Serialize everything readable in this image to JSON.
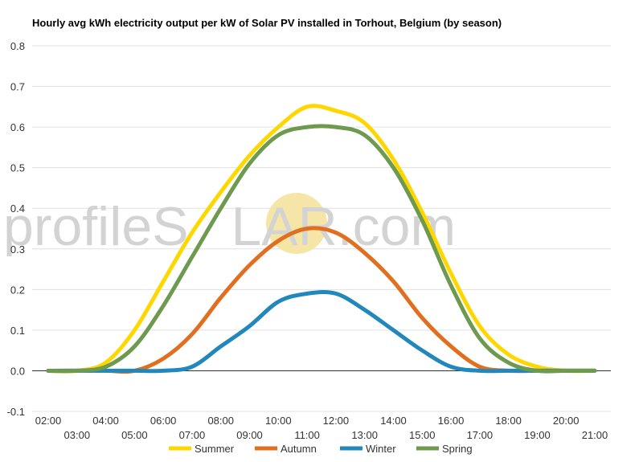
{
  "chart_data": {
    "type": "line",
    "title": "Hourly avg kWh electricity output per kW of Solar PV installed in Torhout, Belgium (by season)",
    "xlabel": "",
    "ylabel": "",
    "ylim": [
      -0.1,
      0.8
    ],
    "y_ticks": [
      "-0.1",
      "0.0",
      "0.1",
      "0.2",
      "0.3",
      "0.4",
      "0.5",
      "0.6",
      "0.7",
      "0.8"
    ],
    "x": [
      "02:00",
      "03:00",
      "04:00",
      "05:00",
      "06:00",
      "07:00",
      "08:00",
      "09:00",
      "10:00",
      "11:00",
      "12:00",
      "13:00",
      "14:00",
      "15:00",
      "16:00",
      "17:00",
      "18:00",
      "19:00",
      "20:00",
      "21:00"
    ],
    "x_ticks_upper": [
      "02:00",
      "04:00",
      "06:00",
      "08:00",
      "10:00",
      "12:00",
      "14:00",
      "16:00",
      "18:00",
      "20:00"
    ],
    "x_ticks_lower": [
      "03:00",
      "05:00",
      "07:00",
      "09:00",
      "11:00",
      "13:00",
      "15:00",
      "17:00",
      "19:00",
      "21:00"
    ],
    "grid": true,
    "legend_position": "bottom",
    "series": [
      {
        "name": "Summer",
        "color": "#FFD700",
        "values": [
          0,
          0,
          0.02,
          0.1,
          0.22,
          0.34,
          0.44,
          0.53,
          0.6,
          0.65,
          0.64,
          0.61,
          0.52,
          0.39,
          0.24,
          0.11,
          0.04,
          0.01,
          0,
          0
        ]
      },
      {
        "name": "Autumn",
        "color": "#E07020",
        "values": [
          0,
          0,
          0,
          0,
          0.03,
          0.09,
          0.18,
          0.26,
          0.32,
          0.35,
          0.34,
          0.29,
          0.22,
          0.13,
          0.06,
          0.01,
          0,
          0,
          0,
          0
        ]
      },
      {
        "name": "Winter",
        "color": "#2288BB",
        "values": [
          0,
          0,
          0,
          0,
          0,
          0.01,
          0.06,
          0.11,
          0.17,
          0.19,
          0.19,
          0.15,
          0.1,
          0.05,
          0.01,
          0,
          0,
          0,
          0,
          0
        ]
      },
      {
        "name": "Spring",
        "color": "#6E9A50",
        "values": [
          0,
          0,
          0.01,
          0.06,
          0.16,
          0.28,
          0.4,
          0.51,
          0.58,
          0.6,
          0.6,
          0.58,
          0.5,
          0.37,
          0.21,
          0.08,
          0.02,
          0,
          0,
          0
        ]
      }
    ]
  },
  "watermark": {
    "before": "profileS",
    "sun_letter": "O",
    "after": "LAR.com",
    "sun_color": "#F5E6A8"
  }
}
